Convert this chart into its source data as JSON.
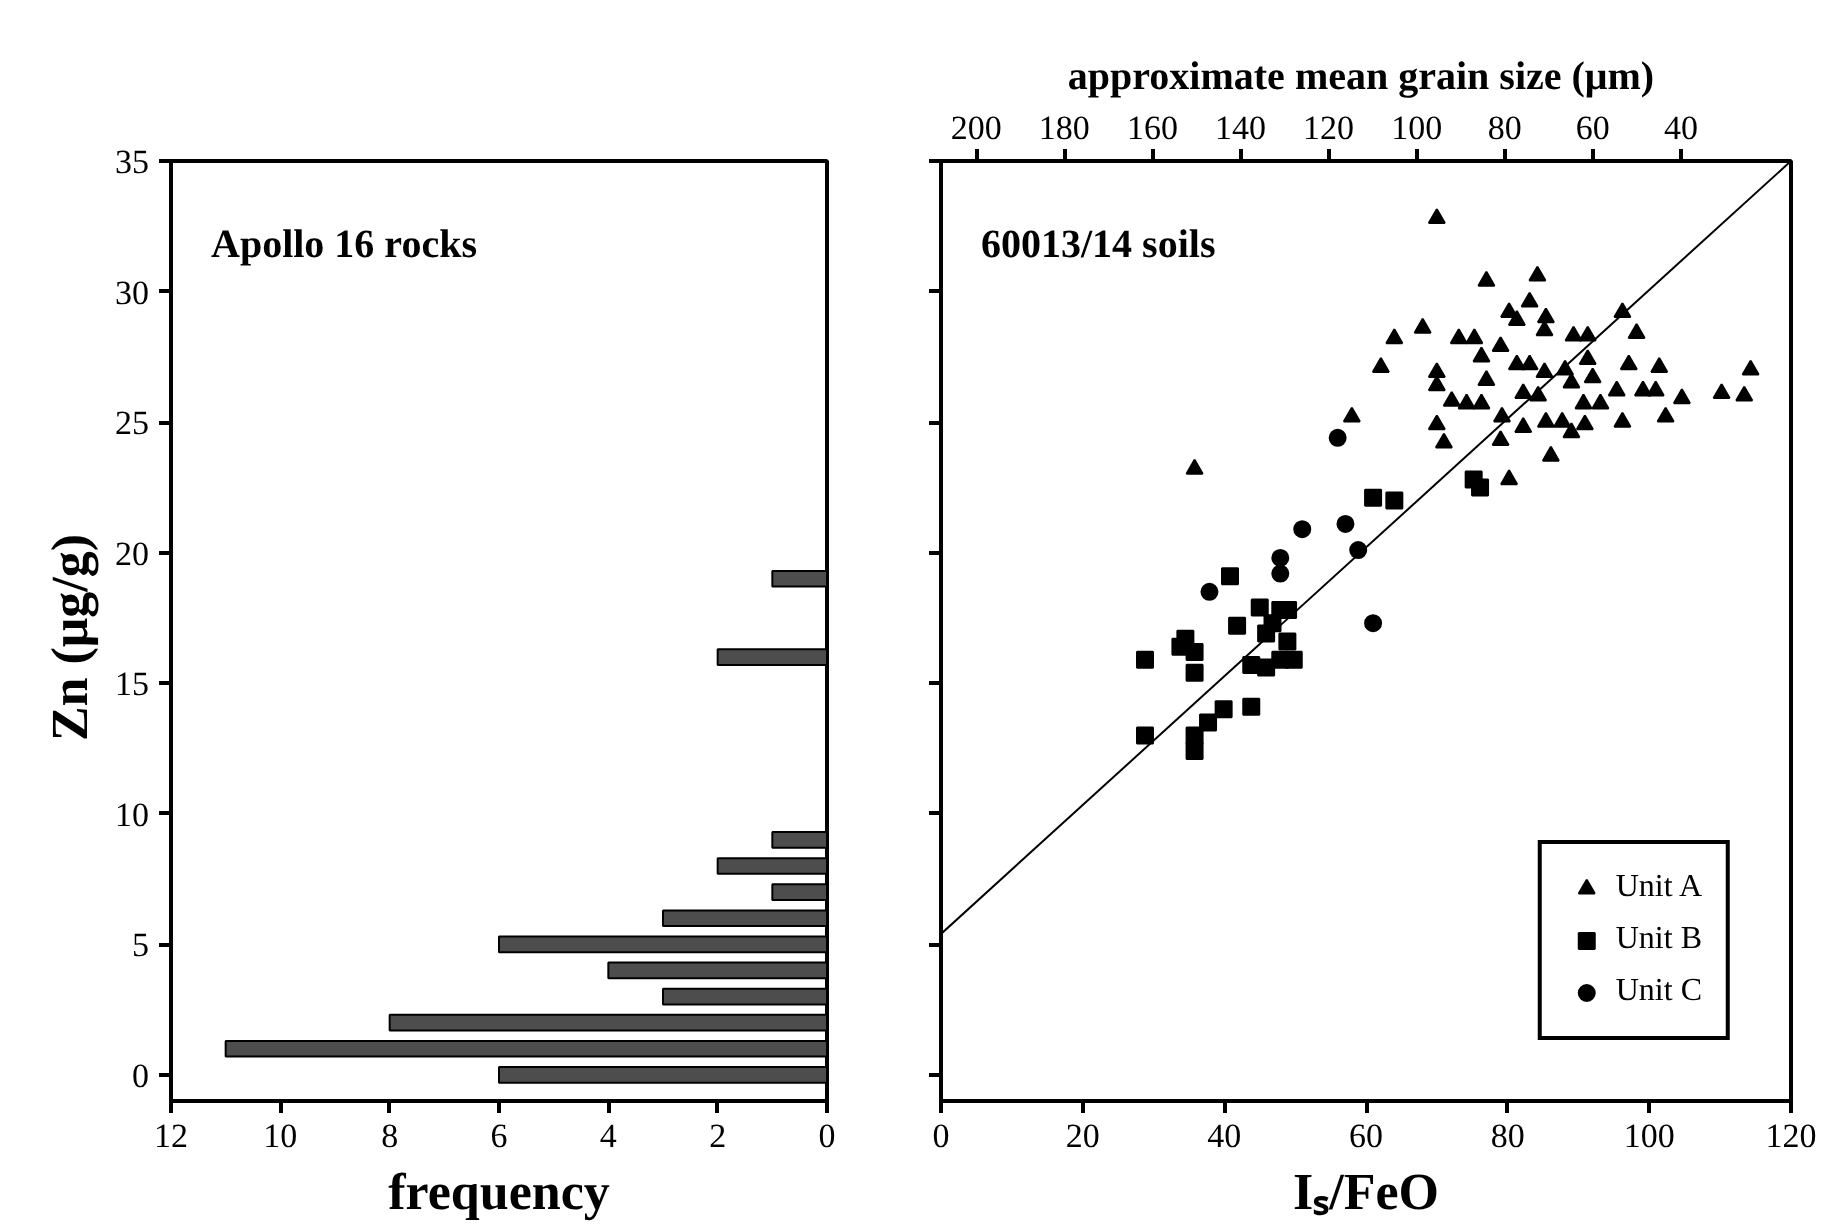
{
  "chart_data": [
    {
      "type": "bar",
      "orientation": "horizontal",
      "annotations": [
        "Apollo 16 rocks"
      ],
      "xlabel": "frequency",
      "ylabel": "Zn  (μg/g)",
      "x": [
        0,
        1,
        2,
        3,
        4,
        5,
        6,
        7,
        8,
        9,
        16,
        19
      ],
      "values": [
        6,
        11,
        8,
        3,
        4,
        6,
        3,
        1,
        2,
        1,
        2,
        1
      ],
      "color": "#4d4d4d",
      "xlim": [
        12,
        0
      ],
      "xticks": [
        12,
        10,
        8,
        6,
        4,
        2,
        0
      ],
      "ylim": [
        -1,
        35
      ],
      "yticks": [
        0,
        5,
        10,
        15,
        20,
        25,
        30,
        35
      ],
      "grid": false
    },
    {
      "type": "scatter",
      "annotations": [
        "60013/14 soils"
      ],
      "xlabel": "Iₛ/FeO",
      "x2label": "approximate mean grain size  (μm)",
      "xlim": [
        0,
        120
      ],
      "xticks": [
        0,
        20,
        40,
        60,
        80,
        100,
        120
      ],
      "ylim": [
        -1,
        35
      ],
      "yticks": [
        0,
        5,
        10,
        15,
        20,
        25,
        30,
        35
      ],
      "x2lim": [
        208,
        15
      ],
      "x2ticks": [
        200,
        180,
        160,
        140,
        120,
        100,
        80,
        60,
        40
      ],
      "tick_labels": "x",
      "grid": false,
      "legend": "bottom right",
      "series": [
        {
          "name": "Unit A",
          "color": "#000000",
          "marker": "triangle",
          "x": [
            70.0,
            35.8,
            77.0,
            84.2,
            64.0,
            68.0,
            62.1,
            73.1,
            75.3,
            80.2,
            83.1,
            85.4,
            81.3,
            85.2,
            89.3,
            91.3,
            96.2,
            98.2,
            79.0,
            76.3,
            81.3,
            83.1,
            70.0,
            77.0,
            85.2,
            88.1,
            91.3,
            97.1,
            101.4,
            114.3,
            70.0,
            72.1,
            74.2,
            76.3,
            82.2,
            84.3,
            89.0,
            92.0,
            90.7,
            93.1,
            95.4,
            99.1,
            100.9,
            104.6,
            110.2,
            113.4,
            102.3,
            79.2,
            70.0,
            71.0,
            82.2,
            85.4,
            87.7,
            89.0,
            90.9,
            96.2,
            79.0,
            86.1,
            80.2,
            58.0
          ],
          "values": [
            32.8,
            23.2,
            30.4,
            30.6,
            28.2,
            28.6,
            27.1,
            28.2,
            28.2,
            29.2,
            29.6,
            29.0,
            28.9,
            28.5,
            28.3,
            28.3,
            29.2,
            28.4,
            27.9,
            27.5,
            27.2,
            27.2,
            26.9,
            26.6,
            26.9,
            27.0,
            27.4,
            27.2,
            27.1,
            27.0,
            26.4,
            25.8,
            25.7,
            25.7,
            26.1,
            26.0,
            26.5,
            26.7,
            25.7,
            25.7,
            26.2,
            26.2,
            26.2,
            25.9,
            26.1,
            26.0,
            25.2,
            25.2,
            24.9,
            24.2,
            24.8,
            25.0,
            25.0,
            24.6,
            24.9,
            25.0,
            24.3,
            23.7,
            22.8,
            25.2
          ]
        },
        {
          "name": "Unit B",
          "color": "#000000",
          "marker": "square",
          "x": [
            75.2,
            76.1,
            61.0,
            64.0,
            40.8,
            41.8,
            45.0,
            47.9,
            49.0,
            45.9,
            46.8,
            48.9,
            34.5,
            33.8,
            35.8,
            35.8,
            28.8,
            43.8,
            45.9,
            47.9,
            49.8,
            28.8,
            35.8,
            35.8,
            37.7,
            39.9,
            43.8
          ],
          "values": [
            22.8,
            22.5,
            22.1,
            22.0,
            19.1,
            17.2,
            17.9,
            17.8,
            17.8,
            16.9,
            17.3,
            16.6,
            16.7,
            16.4,
            16.2,
            15.4,
            15.9,
            15.7,
            15.6,
            15.9,
            15.9,
            13.0,
            13.0,
            12.4,
            13.5,
            14.0,
            14.1
          ]
        },
        {
          "name": "Unit C",
          "color": "#000000",
          "marker": "circle",
          "x": [
            56.0,
            51.0,
            57.1,
            58.9,
            47.9,
            47.9,
            37.9,
            61.0
          ],
          "values": [
            24.4,
            20.9,
            21.1,
            20.1,
            19.8,
            19.2,
            18.5,
            17.3
          ]
        },
        {
          "type": "line",
          "color": "#000000",
          "line_style": "solid",
          "x": [
            0,
            120
          ],
          "values": [
            5.4,
            35
          ]
        }
      ]
    }
  ]
}
